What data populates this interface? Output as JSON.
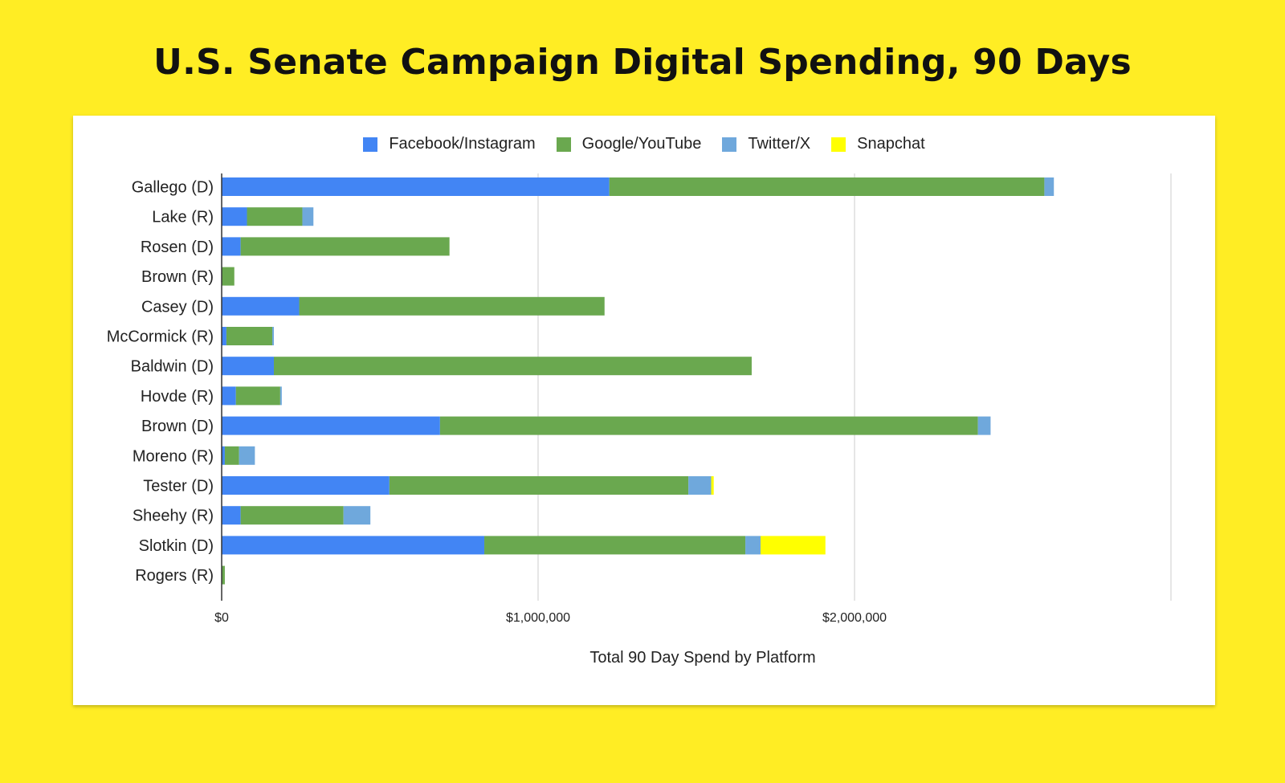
{
  "title": "U.S. Senate Campaign Digital Spending, 90 Days",
  "chart_data": {
    "type": "bar",
    "orientation": "horizontal",
    "stacked": true,
    "categories": [
      "Gallego (D)",
      "Lake (R)",
      "Rosen (D)",
      "Brown (R)",
      "Casey (D)",
      "McCormick (R)",
      "Baldwin (D)",
      "Hovde (R)",
      "Brown (D)",
      "Moreno (R)",
      "Tester (D)",
      "Sheehy (R)",
      "Slotkin (D)",
      "Rogers (R)"
    ],
    "series": [
      {
        "name": "Facebook/Instagram",
        "color": "#4285F4",
        "values": [
          1225000,
          80000,
          60000,
          0,
          245000,
          15000,
          165000,
          45000,
          690000,
          10000,
          530000,
          60000,
          830000,
          0
        ]
      },
      {
        "name": "Google/YouTube",
        "color": "#6AA84F",
        "values": [
          1375000,
          175000,
          660000,
          40000,
          965000,
          145000,
          1510000,
          140000,
          1700000,
          45000,
          945000,
          325000,
          825000,
          10000
        ]
      },
      {
        "name": "Twitter/X",
        "color": "#6FA8DC",
        "values": [
          30000,
          35000,
          0,
          0,
          0,
          5000,
          0,
          5000,
          40000,
          50000,
          72000,
          85000,
          48000,
          0
        ]
      },
      {
        "name": "Snapchat",
        "color": "#FFFF00",
        "values": [
          0,
          0,
          0,
          0,
          0,
          0,
          0,
          0,
          0,
          0,
          8000,
          0,
          205000,
          0
        ]
      }
    ],
    "xlim": [
      0,
      3000000
    ],
    "xticks": [
      0,
      1000000,
      2000000
    ],
    "xtick_labels": [
      "$0",
      "$1,000,000",
      "$2,000,000"
    ],
    "xlabel": "Total 90 Day Spend by Platform",
    "ylabel": "",
    "legend_position": "top",
    "grid": true
  }
}
